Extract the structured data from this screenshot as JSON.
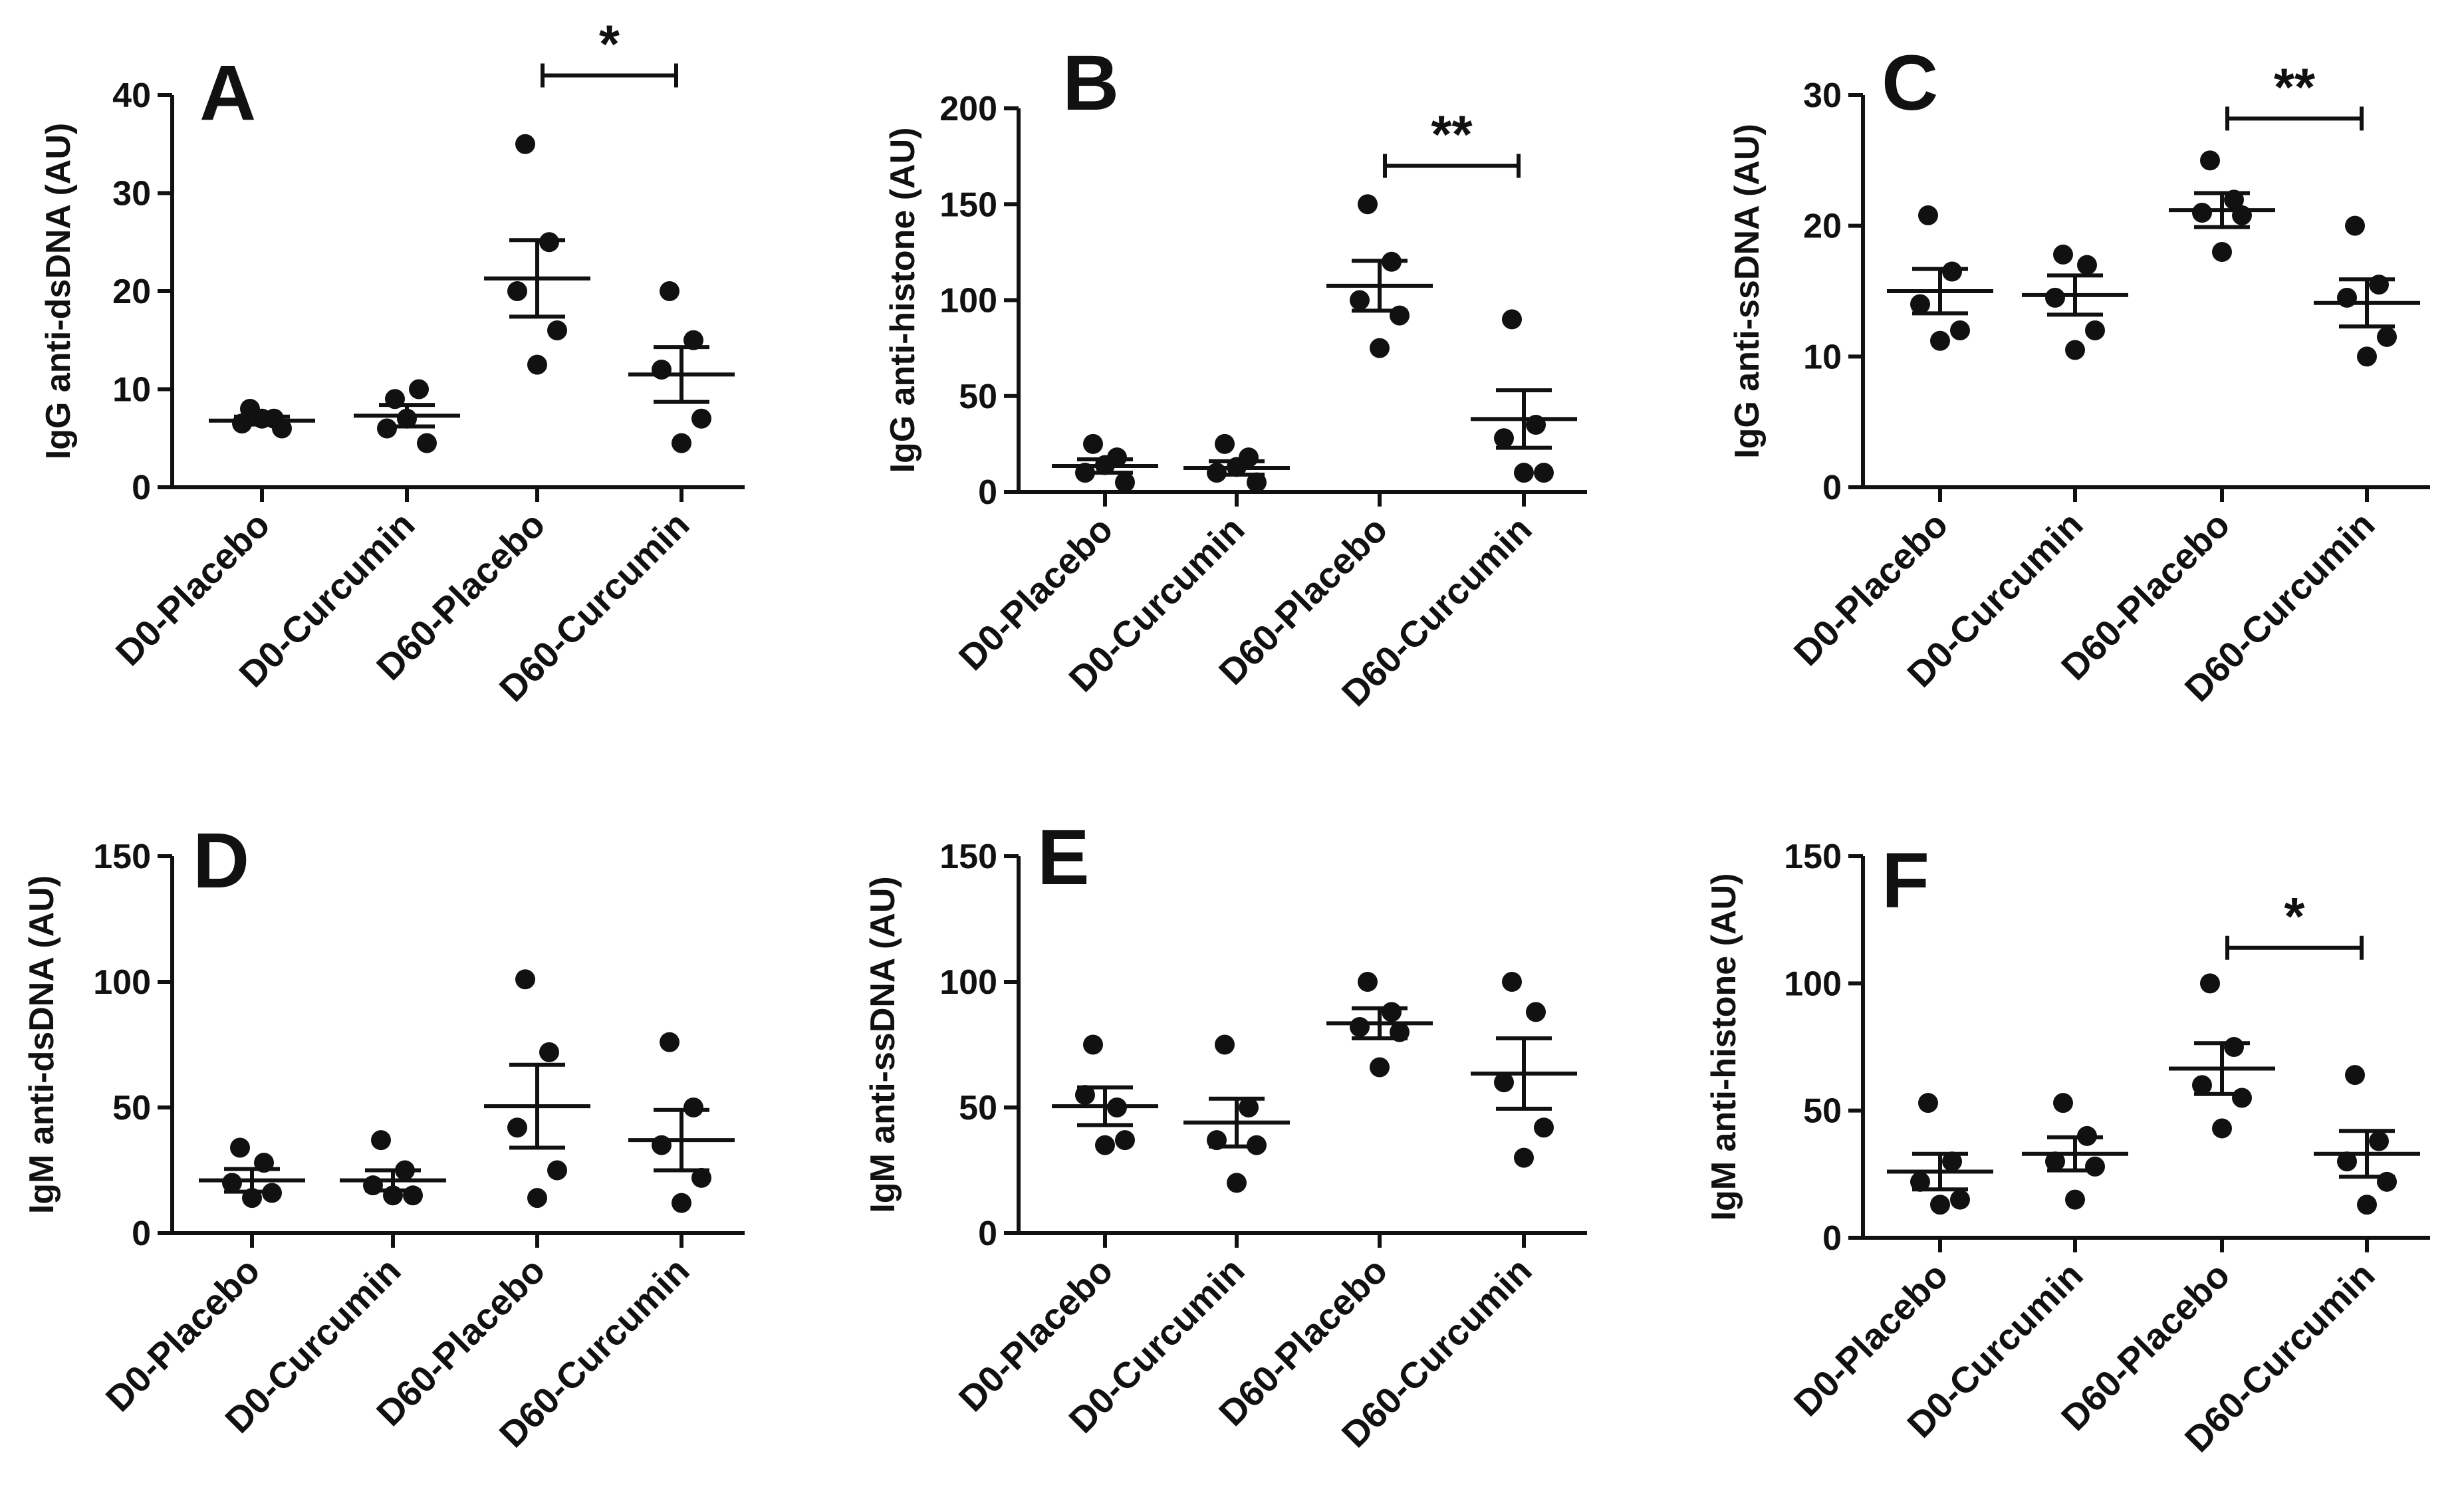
{
  "chart_data": [
    {
      "panel": "A",
      "type": "scatter",
      "ylabel": "IgG anti-dsDNA (AU)",
      "ylim": [
        0,
        40
      ],
      "yticks": [
        0,
        10,
        20,
        30,
        40
      ],
      "categories": [
        "D0-Placebo",
        "D0-Curcumin",
        "D60-Placebo",
        "D60-Curcumin"
      ],
      "groups": [
        {
          "points": [
            8,
            7,
            6.5,
            6,
            7
          ],
          "mean": 6.8,
          "sem": 0.4
        },
        {
          "points": [
            9,
            10,
            6,
            4.5,
            7
          ],
          "mean": 7.3,
          "sem": 1.1
        },
        {
          "points": [
            35,
            25,
            20,
            16,
            12.5
          ],
          "mean": 21.3,
          "sem": 3.9
        },
        {
          "points": [
            20,
            15,
            12,
            7,
            4.5
          ],
          "mean": 11.5,
          "sem": 2.8
        }
      ],
      "significance": [
        {
          "from": 2,
          "to": 3,
          "label": "*",
          "y": 42
        }
      ]
    },
    {
      "panel": "B",
      "type": "scatter",
      "ylabel": "IgG anti-histone (AU)",
      "ylim": [
        0,
        200
      ],
      "yticks": [
        0,
        50,
        100,
        150,
        200
      ],
      "categories": [
        "D0-Placebo",
        "D0-Curcumin",
        "D60-Placebo",
        "D60-Curcumin"
      ],
      "groups": [
        {
          "points": [
            25,
            18,
            10,
            5,
            14
          ],
          "mean": 13.5,
          "sem": 3.5
        },
        {
          "points": [
            25,
            18,
            10,
            5,
            13
          ],
          "mean": 12.5,
          "sem": 3.5
        },
        {
          "points": [
            150,
            120,
            100,
            92,
            75
          ],
          "mean": 107.5,
          "sem": 13
        },
        {
          "points": [
            90,
            35,
            28,
            10,
            10
          ],
          "mean": 38,
          "sem": 15
        }
      ],
      "significance": [
        {
          "from": 2,
          "to": 3,
          "label": "**",
          "y": 170
        }
      ]
    },
    {
      "panel": "C",
      "type": "scatter",
      "ylabel": "IgG anti-ssDNA (AU)",
      "ylim": [
        0,
        30
      ],
      "yticks": [
        0,
        10,
        20,
        30
      ],
      "categories": [
        "D0-Placebo",
        "D0-Curcumin",
        "D60-Placebo",
        "D60-Curcumin"
      ],
      "groups": [
        {
          "points": [
            20.8,
            16.5,
            14,
            12,
            11.2
          ],
          "mean": 15,
          "sem": 1.7
        },
        {
          "points": [
            17.8,
            17,
            14.5,
            12,
            10.5
          ],
          "mean": 14.7,
          "sem": 1.5
        },
        {
          "points": [
            25,
            22,
            21,
            20.8,
            18
          ],
          "mean": 21.2,
          "sem": 1.3
        },
        {
          "points": [
            20,
            15.5,
            14.5,
            11.5,
            10
          ],
          "mean": 14.1,
          "sem": 1.8
        }
      ],
      "significance": [
        {
          "from": 2,
          "to": 3,
          "label": "**",
          "y": 28.2
        }
      ]
    },
    {
      "panel": "D",
      "type": "scatter",
      "ylabel": "IgM anti-dsDNA (AU)",
      "ylim": [
        0,
        150
      ],
      "yticks": [
        0,
        50,
        100,
        150
      ],
      "categories": [
        "D0-Placebo",
        "D0-Curcumin",
        "D60-Placebo",
        "D60-Curcumin"
      ],
      "groups": [
        {
          "points": [
            34,
            28,
            20,
            16,
            14
          ],
          "mean": 21,
          "sem": 4.5
        },
        {
          "points": [
            37,
            25,
            19,
            15,
            15
          ],
          "mean": 21,
          "sem": 4
        },
        {
          "points": [
            101,
            72,
            42,
            25,
            14
          ],
          "mean": 50.5,
          "sem": 16.5
        },
        {
          "points": [
            76,
            50,
            35,
            22,
            12
          ],
          "mean": 37,
          "sem": 12
        }
      ],
      "significance": []
    },
    {
      "panel": "E",
      "type": "scatter",
      "ylabel": "IgM anti-ssDNA (AU)",
      "ylim": [
        0,
        150
      ],
      "yticks": [
        0,
        50,
        100,
        150
      ],
      "categories": [
        "D0-Placebo",
        "D0-Curcumin",
        "D60-Placebo",
        "D60-Curcumin"
      ],
      "groups": [
        {
          "points": [
            75,
            50,
            55,
            37,
            35
          ],
          "mean": 50.5,
          "sem": 7.5
        },
        {
          "points": [
            75,
            50,
            37,
            35,
            20
          ],
          "mean": 44,
          "sem": 9.5
        },
        {
          "points": [
            100,
            88,
            82,
            80,
            66
          ],
          "mean": 83.5,
          "sem": 6
        },
        {
          "points": [
            100,
            88,
            60,
            42,
            30
          ],
          "mean": 63.5,
          "sem": 14
        }
      ],
      "significance": []
    },
    {
      "panel": "F",
      "type": "scatter",
      "ylabel": "IgM anti-histone (AU)",
      "ylim": [
        0,
        150
      ],
      "yticks": [
        0,
        50,
        100,
        150
      ],
      "categories": [
        "D0-Placebo",
        "D0-Curcumin",
        "D60-Placebo",
        "D60-Curcumin"
      ],
      "groups": [
        {
          "points": [
            53,
            30,
            22,
            15,
            13
          ],
          "mean": 26,
          "sem": 7
        },
        {
          "points": [
            53,
            40,
            30,
            28,
            15
          ],
          "mean": 33,
          "sem": 6.5
        },
        {
          "points": [
            100,
            75,
            60,
            55,
            43
          ],
          "mean": 66.5,
          "sem": 10
        },
        {
          "points": [
            64,
            38,
            30,
            22,
            13
          ],
          "mean": 33,
          "sem": 9
        }
      ],
      "significance": [
        {
          "from": 2,
          "to": 3,
          "label": "*",
          "y": 114
        }
      ]
    }
  ]
}
